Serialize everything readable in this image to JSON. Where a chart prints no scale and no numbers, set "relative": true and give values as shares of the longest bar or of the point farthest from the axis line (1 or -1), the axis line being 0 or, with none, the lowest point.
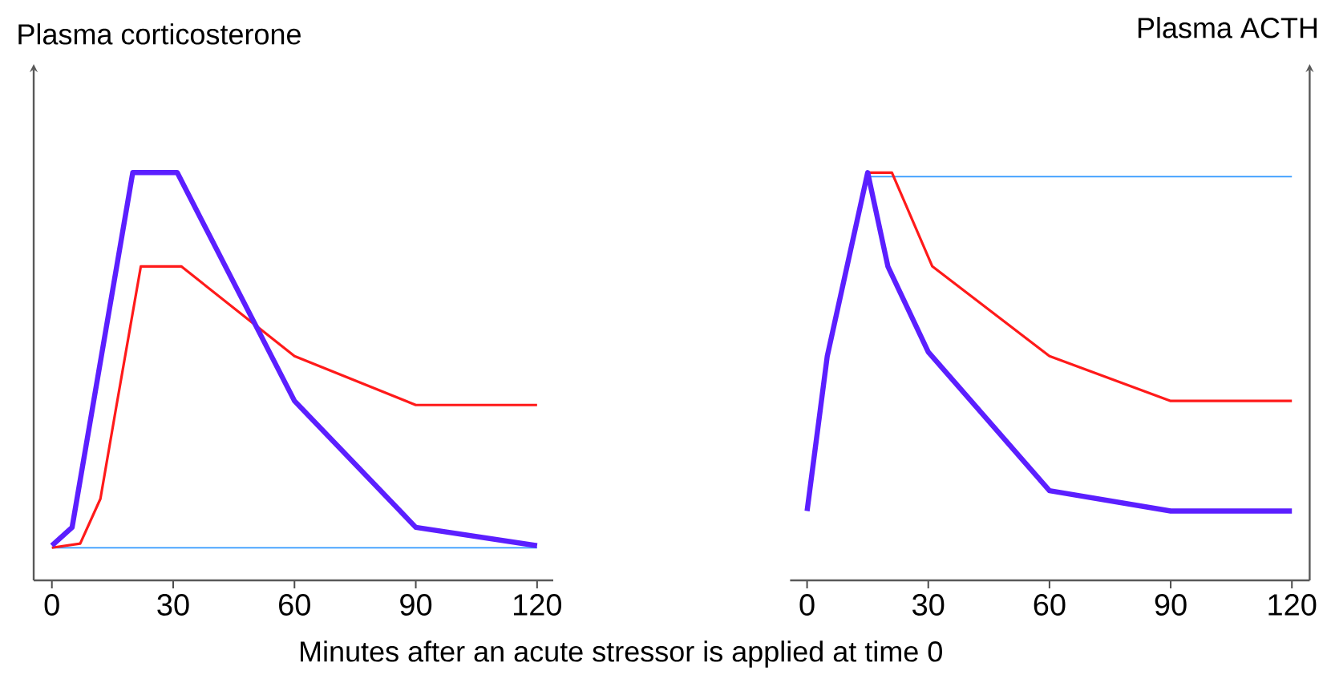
{
  "chart_data": [
    {
      "type": "line",
      "ylabel": "Plasma corticosterone",
      "xlabel": "Minutes after an acute stressor is applied at time 0",
      "relative": true,
      "marker": "none",
      "xlim": [
        -4.5,
        124
      ],
      "xticks": [
        0,
        30,
        60,
        90,
        120
      ],
      "series": [
        {
          "color": "#3399ff",
          "x": [
            0,
            120
          ],
          "values": [
            0.08,
            0.08
          ]
        },
        {
          "color": "#ff1a1a",
          "x": [
            0,
            7,
            12,
            16,
            22,
            32,
            60,
            90,
            120
          ],
          "values": [
            0.08,
            0.09,
            0.2,
            0.43,
            0.77,
            0.77,
            0.55,
            0.43,
            0.43
          ]
        },
        {
          "color": "#5b1fff",
          "x": [
            0,
            5,
            20,
            31,
            60,
            90,
            120
          ],
          "values": [
            0.085,
            0.13,
            1.0,
            1.0,
            0.44,
            0.13,
            0.085
          ]
        }
      ]
    },
    {
      "type": "line",
      "ylabel": "Plasma ACTH",
      "relative": true,
      "marker": "none",
      "xlim": [
        -4.2,
        124.4
      ],
      "xticks": [
        0,
        30,
        60,
        90,
        120
      ],
      "series": [
        {
          "color": "#3399ff",
          "x": [
            15,
            120
          ],
          "values": [
            0.99,
            0.99
          ]
        },
        {
          "color": "#ff1a1a",
          "x": [
            15,
            21,
            31,
            60,
            90,
            120
          ],
          "values": [
            1.0,
            1.0,
            0.77,
            0.55,
            0.44,
            0.44
          ]
        },
        {
          "color": "#5b1fff",
          "x": [
            0,
            5,
            15,
            20,
            30,
            60,
            90,
            120
          ],
          "values": [
            0.17,
            0.55,
            1.0,
            0.77,
            0.56,
            0.22,
            0.17,
            0.17
          ]
        }
      ]
    }
  ]
}
